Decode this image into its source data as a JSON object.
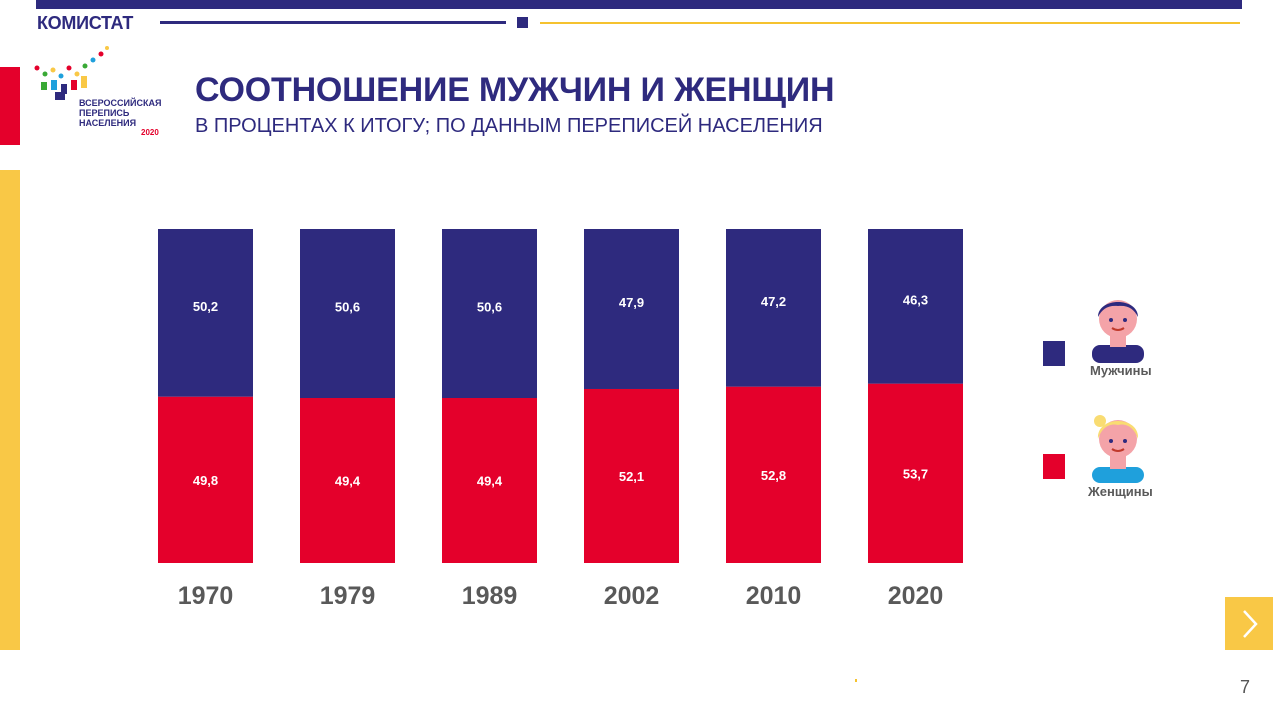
{
  "header": {
    "brand": "КОМИСТАТ"
  },
  "logo": {
    "line1": "ВСЕРОССИЙСКАЯ",
    "line2": "ПЕРЕПИСЬ",
    "line3": "НАСЕЛЕНИЯ",
    "year": "2020"
  },
  "slide": {
    "title": "СООТНОШЕНИЕ МУЖЧИН И ЖЕНЩИН",
    "subtitle": "В ПРОЦЕНТАХ К ИТОГУ; ПО ДАННЫМ ПЕРЕПИСЕЙ НАСЕЛЕНИЯ",
    "page_number": "7"
  },
  "legend": {
    "men": {
      "label": "Мужчины",
      "color": "#2e2a7e"
    },
    "women": {
      "label": "Женщины",
      "color": "#e4002b"
    }
  },
  "colors": {
    "navy": "#2e2a7e",
    "red": "#e4002b",
    "yellow": "#f9c846"
  },
  "chart_data": {
    "type": "bar",
    "stacked": true,
    "categories": [
      "1970",
      "1979",
      "1989",
      "2002",
      "2010",
      "2020"
    ],
    "series": [
      {
        "name": "Женщины",
        "color": "#e4002b",
        "values": [
          49.8,
          49.4,
          49.4,
          52.1,
          52.8,
          53.7
        ],
        "labels": [
          "49,8",
          "49,4",
          "49,4",
          "52,1",
          "52,8",
          "53,7"
        ]
      },
      {
        "name": "Мужчины",
        "color": "#2e2a7e",
        "values": [
          50.2,
          50.6,
          50.6,
          47.9,
          47.2,
          46.3
        ],
        "labels": [
          "50,2",
          "50,6",
          "50,6",
          "47,9",
          "47,2",
          "46,3"
        ]
      }
    ],
    "ylim": [
      0,
      100
    ],
    "legend_position": "right"
  }
}
